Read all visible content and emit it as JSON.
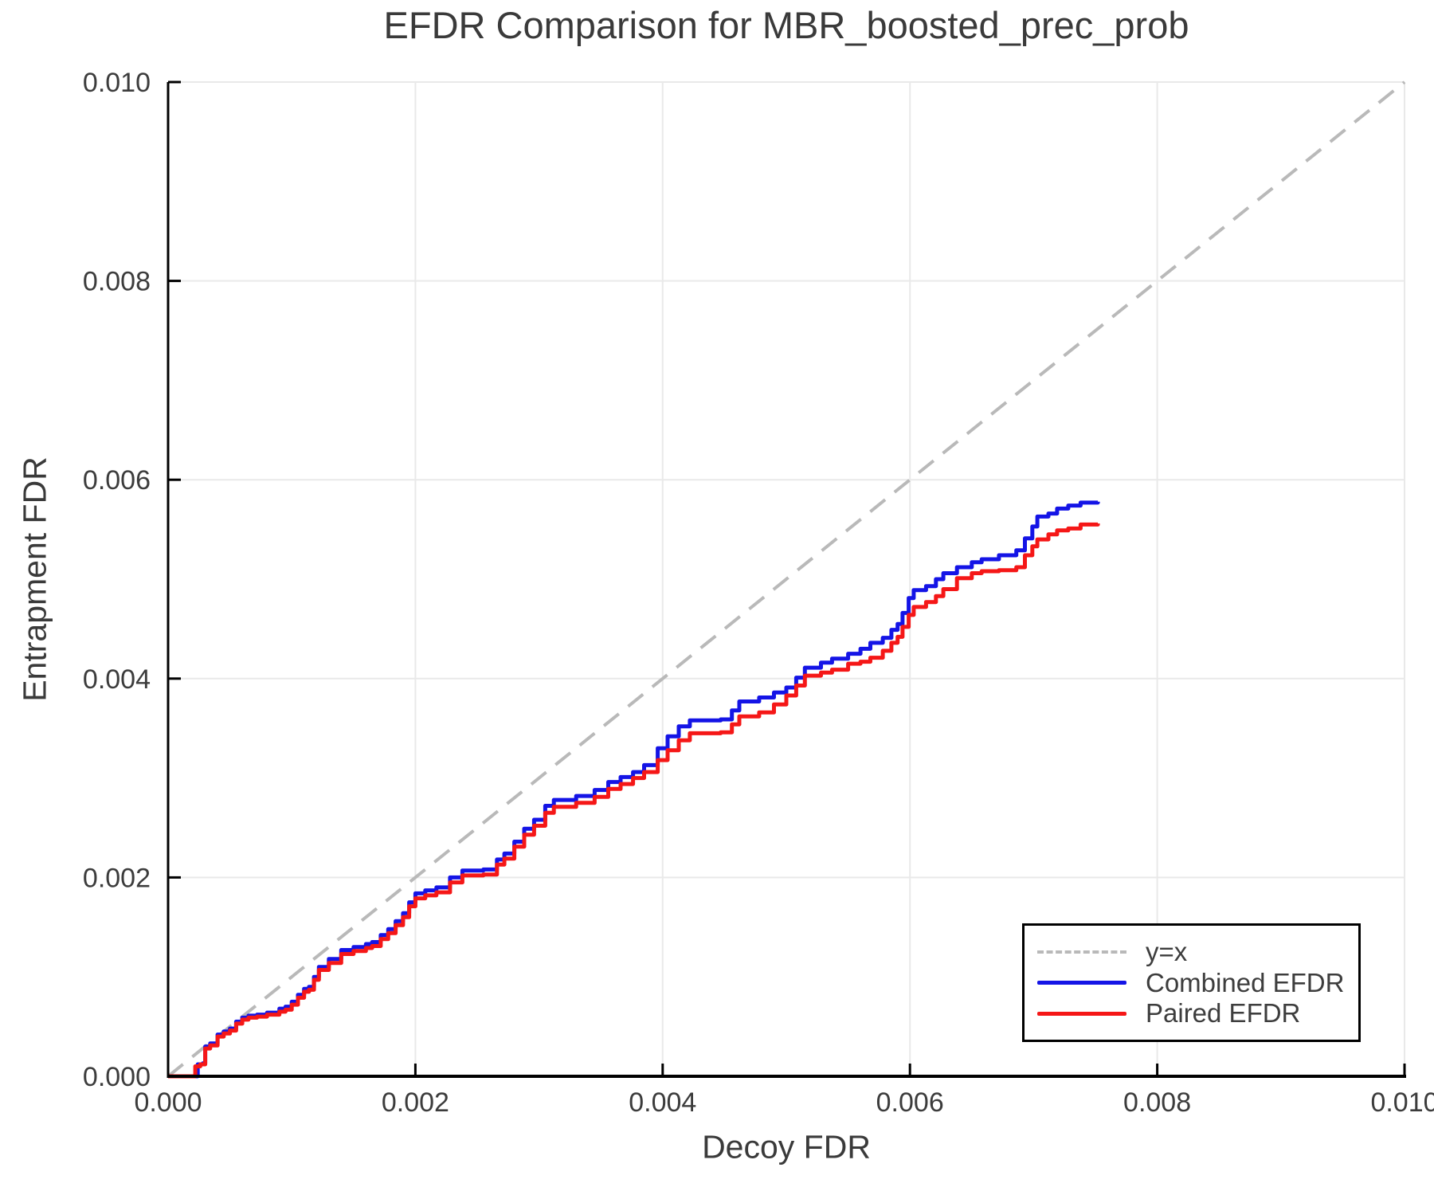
{
  "figure": {
    "title": "EFDR Comparison for MBR_boosted_prec_prob",
    "xlabel": "Decoy FDR",
    "ylabel": "Entrapment FDR"
  },
  "chart_data": {
    "type": "line",
    "title": "EFDR Comparison for MBR_boosted_prec_prob",
    "xlabel": "Decoy FDR",
    "ylabel": "Entrapment FDR",
    "xlim": [
      0.0,
      0.01
    ],
    "ylim": [
      0.0,
      0.01
    ],
    "xticks": [
      0.0,
      0.002,
      0.004,
      0.006,
      0.008,
      0.01
    ],
    "yticks": [
      0.0,
      0.002,
      0.004,
      0.006,
      0.008,
      0.01
    ],
    "xtick_labels": [
      "0.000",
      "0.002",
      "0.004",
      "0.006",
      "0.008",
      "0.010"
    ],
    "ytick_labels": [
      "0.000",
      "0.002",
      "0.004",
      "0.006",
      "0.008",
      "0.010"
    ],
    "grid": true,
    "grid_color": "#e9e9e9",
    "spine_color": "#000000",
    "tick_text_color": "#3c3c3c",
    "legend_position": "lower right",
    "series": [
      {
        "name": "y=x",
        "render": "line",
        "style": "dashed",
        "color": "#b9b9b9",
        "width": 4,
        "points": [
          [
            0.0,
            0.0
          ],
          [
            0.01,
            0.01
          ]
        ]
      },
      {
        "name": "Combined EFDR",
        "render": "step",
        "style": "solid",
        "color": "#1414e6",
        "width": 5,
        "points": [
          [
            0.0,
            0.0
          ],
          [
            0.00022,
            0.0
          ],
          [
            0.00024,
            0.00012
          ],
          [
            0.00028,
            0.00013
          ],
          [
            0.0003,
            0.0003
          ],
          [
            0.00034,
            0.00033
          ],
          [
            0.0004,
            0.00042
          ],
          [
            0.00045,
            0.00045
          ],
          [
            0.0005,
            0.00048
          ],
          [
            0.00055,
            0.00055
          ],
          [
            0.0006,
            0.00059
          ],
          [
            0.00065,
            0.00061
          ],
          [
            0.00072,
            0.00062
          ],
          [
            0.0008,
            0.00064
          ],
          [
            0.0009,
            0.00068
          ],
          [
            0.00095,
            0.0007
          ],
          [
            0.001,
            0.00075
          ],
          [
            0.00105,
            0.00082
          ],
          [
            0.0011,
            0.00088
          ],
          [
            0.00114,
            0.0009
          ],
          [
            0.00118,
            0.001
          ],
          [
            0.00122,
            0.0011
          ],
          [
            0.0013,
            0.00118
          ],
          [
            0.0014,
            0.00127
          ],
          [
            0.0015,
            0.0013
          ],
          [
            0.0016,
            0.00133
          ],
          [
            0.00165,
            0.00135
          ],
          [
            0.00172,
            0.00142
          ],
          [
            0.00178,
            0.00148
          ],
          [
            0.00184,
            0.00156
          ],
          [
            0.0019,
            0.00164
          ],
          [
            0.00195,
            0.00175
          ],
          [
            0.002,
            0.00184
          ],
          [
            0.00208,
            0.00187
          ],
          [
            0.00217,
            0.0019
          ],
          [
            0.00228,
            0.002
          ],
          [
            0.00238,
            0.00207
          ],
          [
            0.00255,
            0.00208
          ],
          [
            0.00266,
            0.00218
          ],
          [
            0.00272,
            0.00224
          ],
          [
            0.0028,
            0.00236
          ],
          [
            0.00288,
            0.00249
          ],
          [
            0.00296,
            0.00258
          ],
          [
            0.00305,
            0.00272
          ],
          [
            0.00312,
            0.00278
          ],
          [
            0.0033,
            0.00282
          ],
          [
            0.00345,
            0.00288
          ],
          [
            0.00356,
            0.00296
          ],
          [
            0.00366,
            0.00301
          ],
          [
            0.00376,
            0.00306
          ],
          [
            0.00385,
            0.00313
          ],
          [
            0.00396,
            0.0033
          ],
          [
            0.00404,
            0.00342
          ],
          [
            0.00413,
            0.00352
          ],
          [
            0.00422,
            0.00358
          ],
          [
            0.00447,
            0.00359
          ],
          [
            0.00456,
            0.00368
          ],
          [
            0.00462,
            0.00377
          ],
          [
            0.00478,
            0.00381
          ],
          [
            0.0049,
            0.00386
          ],
          [
            0.005,
            0.00391
          ],
          [
            0.00508,
            0.00401
          ],
          [
            0.00515,
            0.00411
          ],
          [
            0.00528,
            0.00416
          ],
          [
            0.00537,
            0.0042
          ],
          [
            0.0055,
            0.00425
          ],
          [
            0.0056,
            0.0043
          ],
          [
            0.00568,
            0.00436
          ],
          [
            0.00578,
            0.00441
          ],
          [
            0.00585,
            0.00449
          ],
          [
            0.0059,
            0.00455
          ],
          [
            0.00594,
            0.00466
          ],
          [
            0.00599,
            0.00481
          ],
          [
            0.00603,
            0.00489
          ],
          [
            0.00613,
            0.00493
          ],
          [
            0.00621,
            0.005
          ],
          [
            0.00627,
            0.00506
          ],
          [
            0.00638,
            0.00512
          ],
          [
            0.0065,
            0.00517
          ],
          [
            0.00658,
            0.0052
          ],
          [
            0.00672,
            0.00524
          ],
          [
            0.00686,
            0.00529
          ],
          [
            0.00693,
            0.00541
          ],
          [
            0.00699,
            0.00553
          ],
          [
            0.00703,
            0.00563
          ],
          [
            0.00712,
            0.00566
          ],
          [
            0.00719,
            0.00571
          ],
          [
            0.00728,
            0.00574
          ],
          [
            0.00738,
            0.00577
          ],
          [
            0.00752,
            0.00578
          ]
        ]
      },
      {
        "name": "Paired EFDR",
        "render": "step",
        "style": "solid",
        "color": "#f51717",
        "width": 5,
        "points": [
          [
            0.0,
            0.0
          ],
          [
            0.0002,
            0.0
          ],
          [
            0.00022,
            0.0001
          ],
          [
            0.00026,
            0.00012
          ],
          [
            0.0003,
            0.00028
          ],
          [
            0.00034,
            0.00031
          ],
          [
            0.0004,
            0.0004
          ],
          [
            0.00045,
            0.00043
          ],
          [
            0.0005,
            0.00046
          ],
          [
            0.00055,
            0.00053
          ],
          [
            0.0006,
            0.00057
          ],
          [
            0.00065,
            0.00059
          ],
          [
            0.00072,
            0.0006
          ],
          [
            0.0008,
            0.00062
          ],
          [
            0.0009,
            0.00065
          ],
          [
            0.00095,
            0.00067
          ],
          [
            0.001,
            0.00072
          ],
          [
            0.00105,
            0.00079
          ],
          [
            0.0011,
            0.00085
          ],
          [
            0.00114,
            0.00087
          ],
          [
            0.00118,
            0.00097
          ],
          [
            0.00122,
            0.00107
          ],
          [
            0.0013,
            0.00114
          ],
          [
            0.0014,
            0.00123
          ],
          [
            0.0015,
            0.00126
          ],
          [
            0.0016,
            0.00129
          ],
          [
            0.00165,
            0.00131
          ],
          [
            0.00172,
            0.00138
          ],
          [
            0.00178,
            0.00144
          ],
          [
            0.00184,
            0.00152
          ],
          [
            0.0019,
            0.0016
          ],
          [
            0.00195,
            0.00171
          ],
          [
            0.002,
            0.00179
          ],
          [
            0.00208,
            0.00182
          ],
          [
            0.00217,
            0.00185
          ],
          [
            0.00228,
            0.00195
          ],
          [
            0.00238,
            0.00202
          ],
          [
            0.00255,
            0.00203
          ],
          [
            0.00266,
            0.00213
          ],
          [
            0.00272,
            0.00219
          ],
          [
            0.0028,
            0.00231
          ],
          [
            0.00288,
            0.00243
          ],
          [
            0.00296,
            0.00252
          ],
          [
            0.00305,
            0.00265
          ],
          [
            0.00312,
            0.00271
          ],
          [
            0.0033,
            0.00275
          ],
          [
            0.00345,
            0.00281
          ],
          [
            0.00356,
            0.00289
          ],
          [
            0.00366,
            0.00294
          ],
          [
            0.00376,
            0.003
          ],
          [
            0.00385,
            0.00306
          ],
          [
            0.00396,
            0.00318
          ],
          [
            0.00404,
            0.00328
          ],
          [
            0.00413,
            0.00338
          ],
          [
            0.00422,
            0.00345
          ],
          [
            0.00447,
            0.00346
          ],
          [
            0.00456,
            0.00354
          ],
          [
            0.00462,
            0.00362
          ],
          [
            0.00478,
            0.00366
          ],
          [
            0.0049,
            0.00374
          ],
          [
            0.005,
            0.00383
          ],
          [
            0.00508,
            0.00393
          ],
          [
            0.00515,
            0.00403
          ],
          [
            0.00528,
            0.00406
          ],
          [
            0.00537,
            0.00409
          ],
          [
            0.0055,
            0.00415
          ],
          [
            0.0056,
            0.00417
          ],
          [
            0.00568,
            0.00421
          ],
          [
            0.00578,
            0.00428
          ],
          [
            0.00585,
            0.00436
          ],
          [
            0.0059,
            0.00442
          ],
          [
            0.00594,
            0.00452
          ],
          [
            0.00599,
            0.00464
          ],
          [
            0.00603,
            0.00472
          ],
          [
            0.00613,
            0.00477
          ],
          [
            0.00621,
            0.00483
          ],
          [
            0.00627,
            0.0049
          ],
          [
            0.00638,
            0.00501
          ],
          [
            0.0065,
            0.00506
          ],
          [
            0.00658,
            0.00508
          ],
          [
            0.00672,
            0.00509
          ],
          [
            0.00686,
            0.00512
          ],
          [
            0.00693,
            0.00524
          ],
          [
            0.00699,
            0.00533
          ],
          [
            0.00703,
            0.0054
          ],
          [
            0.00712,
            0.00545
          ],
          [
            0.00719,
            0.00549
          ],
          [
            0.00728,
            0.00551
          ],
          [
            0.00738,
            0.00555
          ],
          [
            0.00752,
            0.00556
          ]
        ]
      }
    ],
    "legend": {
      "entries": [
        {
          "label": "y=x",
          "color": "#b9b9b9",
          "style": "dashed"
        },
        {
          "label": "Combined EFDR",
          "color": "#1414e6",
          "style": "solid"
        },
        {
          "label": "Paired EFDR",
          "color": "#f51717",
          "style": "solid"
        }
      ]
    }
  }
}
